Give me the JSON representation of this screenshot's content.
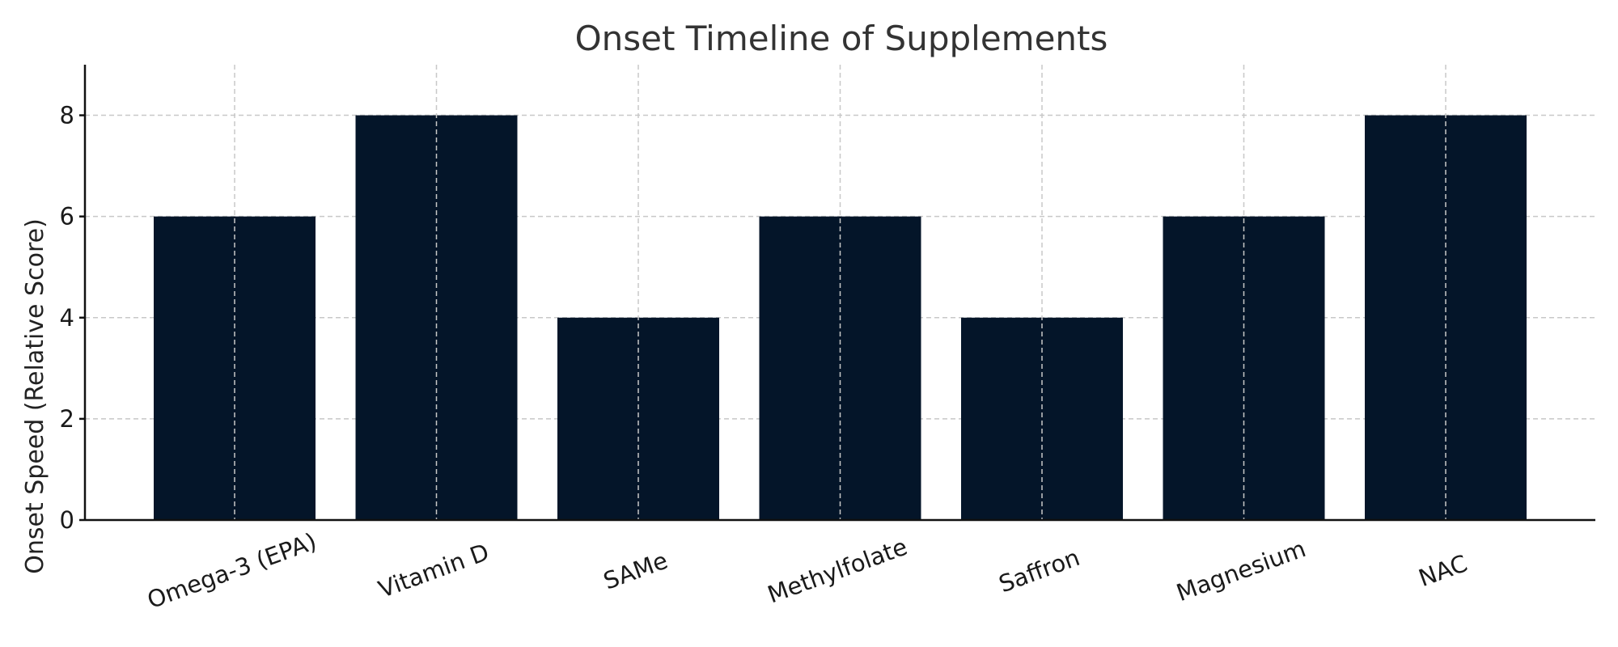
{
  "chart_data": {
    "type": "bar",
    "title": "Onset Timeline of Supplements",
    "xlabel": "",
    "ylabel": "Onset Speed (Relative Score)",
    "categories": [
      "Omega-3 (EPA)",
      "Vitamin D",
      "SAMe",
      "Methylfolate",
      "Saffron",
      "Magnesium",
      "NAC"
    ],
    "values": [
      6,
      8,
      4,
      6,
      4,
      6,
      8
    ],
    "ylim": [
      0,
      9
    ],
    "yticks": [
      0,
      2,
      4,
      6,
      8
    ],
    "grid": true,
    "bar_color": "#041529",
    "x_tick_rotation": "slanted"
  }
}
